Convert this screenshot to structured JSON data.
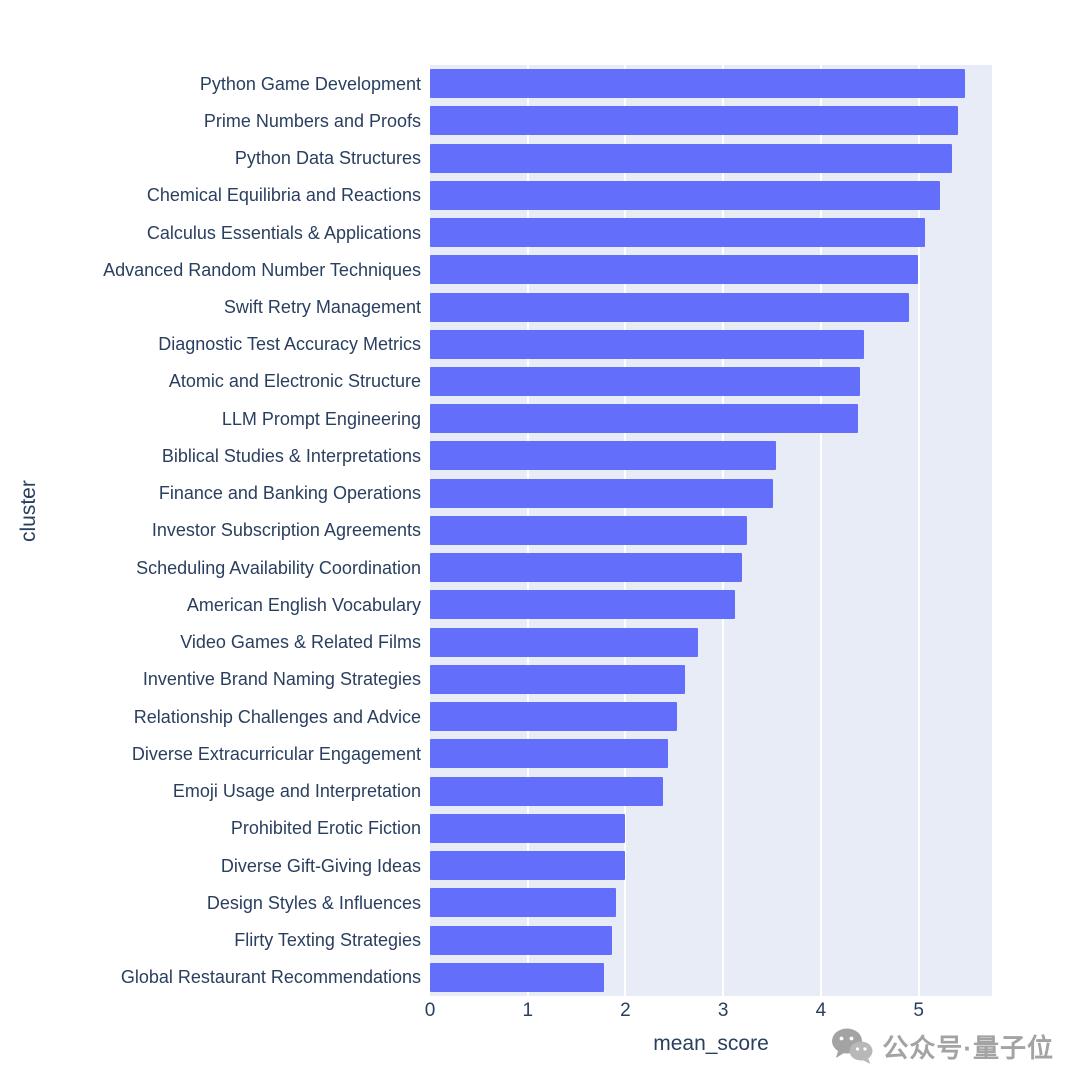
{
  "chart_data": {
    "type": "bar",
    "orientation": "horizontal",
    "title": "",
    "xlabel": "mean_score",
    "ylabel": "cluster",
    "xlim": [
      0,
      5.75
    ],
    "xticks": [
      0,
      1,
      2,
      3,
      4,
      5
    ],
    "grid": true,
    "legend": false,
    "categories": [
      "Python Game Development",
      "Prime Numbers and Proofs",
      "Python Data Structures",
      "Chemical Equilibria and Reactions",
      "Calculus Essentials & Applications",
      "Advanced Random Number Techniques",
      "Swift Retry Management",
      "Diagnostic Test Accuracy Metrics",
      "Atomic and Electronic Structure",
      "LLM Prompt Engineering",
      "Biblical Studies & Interpretations",
      "Finance and Banking Operations",
      "Investor Subscription Agreements",
      "Scheduling Availability Coordination",
      "American English Vocabulary",
      "Video Games & Related Films",
      "Inventive Brand Naming Strategies",
      "Relationship Challenges and Advice",
      "Diverse Extracurricular Engagement",
      "Emoji Usage and Interpretation",
      "Prohibited Erotic Fiction",
      "Diverse Gift-Giving Ideas",
      "Design Styles & Influences",
      "Flirty Texting Strategies",
      "Global Restaurant Recommendations"
    ],
    "values": [
      5.47,
      5.4,
      5.34,
      5.22,
      5.06,
      4.99,
      4.9,
      4.44,
      4.4,
      4.38,
      3.54,
      3.51,
      3.24,
      3.19,
      3.12,
      2.74,
      2.61,
      2.53,
      2.43,
      2.38,
      2.0,
      1.99,
      1.9,
      1.86,
      1.78
    ]
  },
  "watermark": {
    "icon": "wechat-icon",
    "text": "公众号·量子位"
  },
  "colors": {
    "bar": "#636efa",
    "plot_bg": "#e7ecf6",
    "grid": "#ffffff",
    "text": "#2a3f5f",
    "watermark": "#a3a3a3"
  }
}
